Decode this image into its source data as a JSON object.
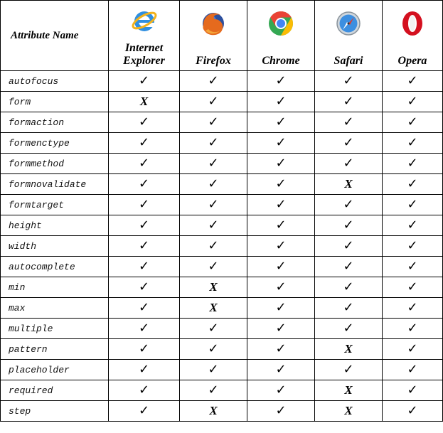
{
  "header": {
    "attribute_label": "Attribute Name",
    "browsers": [
      {
        "name": "Internet Explorer",
        "icon": "internet-explorer-icon"
      },
      {
        "name": "Firefox",
        "icon": "firefox-icon"
      },
      {
        "name": "Chrome",
        "icon": "chrome-icon"
      },
      {
        "name": "Safari",
        "icon": "safari-icon"
      },
      {
        "name": "Opera",
        "icon": "opera-icon"
      }
    ]
  },
  "marks": {
    "yes": "✓",
    "no": "X"
  },
  "rows": [
    {
      "attr": "autofocus",
      "ie": "yes",
      "firefox": "yes",
      "chrome": "yes",
      "safari": "yes",
      "opera": "yes"
    },
    {
      "attr": "form",
      "ie": "no",
      "firefox": "yes",
      "chrome": "yes",
      "safari": "yes",
      "opera": "yes"
    },
    {
      "attr": "formaction",
      "ie": "yes",
      "firefox": "yes",
      "chrome": "yes",
      "safari": "yes",
      "opera": "yes"
    },
    {
      "attr": "formenctype",
      "ie": "yes",
      "firefox": "yes",
      "chrome": "yes",
      "safari": "yes",
      "opera": "yes"
    },
    {
      "attr": "formmethod",
      "ie": "yes",
      "firefox": "yes",
      "chrome": "yes",
      "safari": "yes",
      "opera": "yes"
    },
    {
      "attr": "formnovalidate",
      "ie": "yes",
      "firefox": "yes",
      "chrome": "yes",
      "safari": "no",
      "opera": "yes"
    },
    {
      "attr": "formtarget",
      "ie": "yes",
      "firefox": "yes",
      "chrome": "yes",
      "safari": "yes",
      "opera": "yes"
    },
    {
      "attr": "height",
      "ie": "yes",
      "firefox": "yes",
      "chrome": "yes",
      "safari": "yes",
      "opera": "yes"
    },
    {
      "attr": "width",
      "ie": "yes",
      "firefox": "yes",
      "chrome": "yes",
      "safari": "yes",
      "opera": "yes"
    },
    {
      "attr": "autocomplete",
      "ie": "yes",
      "firefox": "yes",
      "chrome": "yes",
      "safari": "yes",
      "opera": "yes"
    },
    {
      "attr": "min",
      "ie": "yes",
      "firefox": "no",
      "chrome": "yes",
      "safari": "yes",
      "opera": "yes"
    },
    {
      "attr": "max",
      "ie": "yes",
      "firefox": "no",
      "chrome": "yes",
      "safari": "yes",
      "opera": "yes"
    },
    {
      "attr": "multiple",
      "ie": "yes",
      "firefox": "yes",
      "chrome": "yes",
      "safari": "yes",
      "opera": "yes"
    },
    {
      "attr": "pattern",
      "ie": "yes",
      "firefox": "yes",
      "chrome": "yes",
      "safari": "no",
      "opera": "yes"
    },
    {
      "attr": "placeholder",
      "ie": "yes",
      "firefox": "yes",
      "chrome": "yes",
      "safari": "yes",
      "opera": "yes"
    },
    {
      "attr": "required",
      "ie": "yes",
      "firefox": "yes",
      "chrome": "yes",
      "safari": "no",
      "opera": "yes"
    },
    {
      "attr": "step",
      "ie": "yes",
      "firefox": "no",
      "chrome": "yes",
      "safari": "no",
      "opera": "yes"
    }
  ]
}
